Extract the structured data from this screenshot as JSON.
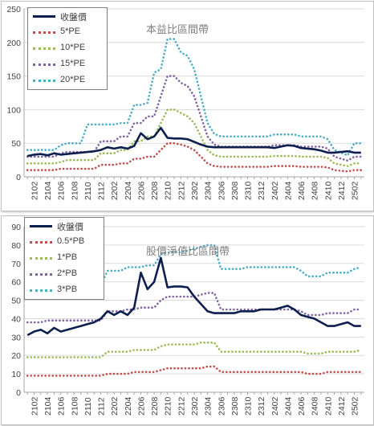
{
  "chart_data": [
    {
      "type": "line",
      "title": "本益比區間帶",
      "ylim": [
        0,
        250
      ],
      "yticks": [
        "0",
        "50",
        "100",
        "150",
        "200",
        "250"
      ],
      "xtick_labels": [
        "2102",
        "2104",
        "2106",
        "2108",
        "2110",
        "2112",
        "2202",
        "2204",
        "2206",
        "2208",
        "2210",
        "2212",
        "2302",
        "2304",
        "2306",
        "2308",
        "2310",
        "2312",
        "2402",
        "2404",
        "2406",
        "2408",
        "2410",
        "2412",
        "2502"
      ],
      "x": [
        "2101",
        "2102",
        "2103",
        "2104",
        "2105",
        "2106",
        "2107",
        "2108",
        "2109",
        "2110",
        "2111",
        "2112",
        "2201",
        "2202",
        "2203",
        "2204",
        "2205",
        "2206",
        "2207",
        "2208",
        "2209",
        "2210",
        "2211",
        "2212",
        "2301",
        "2302",
        "2303",
        "2304",
        "2305",
        "2306",
        "2307",
        "2308",
        "2309",
        "2310",
        "2311",
        "2312",
        "2401",
        "2402",
        "2403",
        "2404",
        "2405",
        "2406",
        "2407",
        "2408",
        "2409",
        "2410",
        "2411",
        "2412",
        "2501",
        "2502",
        "2503"
      ],
      "series": [
        {
          "name": "收盤價",
          "color": "#0d1f4f",
          "style": "solid",
          "values": [
            31,
            33,
            34,
            32,
            35,
            33,
            34,
            35,
            36,
            37,
            38,
            40,
            44,
            42,
            44,
            42,
            46,
            65,
            56,
            60,
            73,
            58,
            57,
            57,
            56,
            52,
            48,
            45,
            44,
            44,
            44,
            44,
            44,
            44,
            44,
            44,
            44,
            43,
            45,
            47,
            46,
            43,
            42,
            41,
            39,
            36,
            36,
            37,
            38,
            36,
            36
          ]
        },
        {
          "name": "5*PE",
          "color": "#c0504d",
          "style": "dotted",
          "values": [
            10,
            10,
            10,
            10,
            10,
            12,
            12,
            12,
            12,
            12,
            12,
            18,
            18,
            18,
            20,
            20,
            27,
            27,
            30,
            30,
            40,
            50,
            50,
            48,
            45,
            40,
            30,
            20,
            16,
            15,
            15,
            15,
            15,
            15,
            15,
            15,
            15,
            16,
            16,
            16,
            16,
            15,
            15,
            15,
            15,
            14,
            10,
            9,
            8,
            10,
            10
          ]
        },
        {
          "name": "10*PE",
          "color": "#9bbb59",
          "style": "dotted",
          "values": [
            20,
            20,
            20,
            20,
            20,
            22,
            25,
            25,
            25,
            25,
            25,
            35,
            35,
            35,
            40,
            40,
            53,
            53,
            60,
            60,
            80,
            100,
            100,
            95,
            90,
            80,
            60,
            40,
            32,
            30,
            30,
            30,
            30,
            30,
            30,
            30,
            30,
            31,
            31,
            31,
            31,
            30,
            30,
            30,
            30,
            28,
            20,
            18,
            16,
            20,
            20
          ]
        },
        {
          "name": "15*PE",
          "color": "#8064a2",
          "style": "dotted",
          "values": [
            30,
            30,
            30,
            30,
            30,
            35,
            37,
            37,
            37,
            37,
            37,
            53,
            53,
            53,
            60,
            60,
            80,
            80,
            90,
            90,
            120,
            150,
            150,
            140,
            135,
            120,
            90,
            60,
            48,
            45,
            45,
            45,
            45,
            45,
            45,
            45,
            45,
            47,
            47,
            47,
            47,
            45,
            45,
            45,
            45,
            42,
            30,
            27,
            24,
            30,
            30
          ]
        },
        {
          "name": "20*PE",
          "color": "#4bacc6",
          "style": "dotted",
          "values": [
            40,
            40,
            40,
            40,
            40,
            47,
            50,
            50,
            50,
            78,
            78,
            78,
            78,
            78,
            80,
            80,
            107,
            107,
            110,
            155,
            160,
            205,
            205,
            185,
            180,
            160,
            120,
            80,
            64,
            60,
            60,
            60,
            60,
            60,
            60,
            60,
            60,
            63,
            63,
            63,
            63,
            60,
            60,
            60,
            60,
            56,
            40,
            36,
            32,
            50,
            50
          ]
        }
      ]
    },
    {
      "type": "line",
      "title": "股價淨值比區間帶",
      "ylim": [
        0,
        90
      ],
      "yticks": [
        "0",
        "10",
        "20",
        "30",
        "40",
        "50",
        "60",
        "70",
        "80",
        "90"
      ],
      "xtick_labels": [
        "2102",
        "2104",
        "2106",
        "2108",
        "2110",
        "2112",
        "2202",
        "2204",
        "2206",
        "2208",
        "2210",
        "2212",
        "2302",
        "2304",
        "2306",
        "2308",
        "2310",
        "2312",
        "2402",
        "2404",
        "2406",
        "2408",
        "2410",
        "2412",
        "2502"
      ],
      "x": [
        "2101",
        "2102",
        "2103",
        "2104",
        "2105",
        "2106",
        "2107",
        "2108",
        "2109",
        "2110",
        "2111",
        "2112",
        "2201",
        "2202",
        "2203",
        "2204",
        "2205",
        "2206",
        "2207",
        "2208",
        "2209",
        "2210",
        "2211",
        "2212",
        "2301",
        "2302",
        "2303",
        "2304",
        "2305",
        "2306",
        "2307",
        "2308",
        "2309",
        "2310",
        "2311",
        "2312",
        "2401",
        "2402",
        "2403",
        "2404",
        "2405",
        "2406",
        "2407",
        "2408",
        "2409",
        "2410",
        "2411",
        "2412",
        "2501",
        "2502",
        "2503"
      ],
      "series": [
        {
          "name": "收盤價",
          "color": "#0d1f4f",
          "style": "solid",
          "values": [
            31,
            33,
            34,
            32,
            35,
            33,
            34,
            35,
            36,
            37,
            38,
            40,
            44,
            42,
            44,
            42,
            46,
            65,
            56,
            60,
            73,
            57,
            57.5,
            57.5,
            57,
            52,
            48,
            44,
            43,
            43,
            43,
            43,
            44,
            44,
            44,
            45,
            45,
            45,
            46,
            47,
            45,
            42,
            41,
            40,
            38,
            36,
            36,
            37,
            38,
            36,
            36
          ]
        },
        {
          "name": "0.5*PB",
          "color": "#c0504d",
          "style": "dotted",
          "values": [
            9,
            9,
            9,
            9,
            9,
            9,
            9,
            9,
            9,
            9,
            9,
            9,
            10,
            10,
            10,
            10,
            11,
            11,
            11,
            11,
            12,
            13,
            13,
            13,
            13,
            13,
            13,
            14,
            14,
            11,
            11,
            11,
            11,
            11,
            11,
            11,
            11,
            11,
            11,
            11,
            11,
            11,
            10,
            10,
            10,
            11,
            11,
            11,
            11,
            11,
            11
          ]
        },
        {
          "name": "1*PB",
          "color": "#9bbb59",
          "style": "dotted",
          "values": [
            19,
            19,
            19,
            19,
            19,
            19,
            19,
            19,
            19,
            19,
            19,
            19,
            22,
            22,
            22,
            22,
            23,
            23,
            23,
            23,
            25,
            26,
            26,
            26,
            26,
            26,
            27,
            27,
            27,
            22,
            22,
            22,
            22,
            22,
            22,
            22,
            22,
            22,
            22,
            22,
            22,
            22,
            21,
            21,
            21,
            22,
            22,
            22,
            22,
            22,
            23
          ]
        },
        {
          "name": "2*PB",
          "color": "#8064a2",
          "style": "dotted",
          "values": [
            38,
            38,
            38,
            39,
            39,
            39,
            39,
            39,
            39,
            39,
            39,
            39,
            44,
            44,
            44,
            45,
            45,
            46,
            46,
            46,
            50,
            52,
            52,
            52,
            52,
            52,
            53,
            54,
            54,
            45,
            45,
            45,
            45,
            45,
            45,
            45,
            45,
            45,
            45,
            45,
            45,
            44,
            42,
            42,
            42,
            43,
            43,
            43,
            43,
            45,
            45
          ]
        },
        {
          "name": "3*PB",
          "color": "#4bacc6",
          "style": "dotted",
          "values": [
            56,
            56,
            56,
            57,
            57,
            57,
            57,
            58,
            58,
            58,
            58,
            58,
            66,
            66,
            66,
            68,
            68,
            68,
            69,
            69,
            75,
            76,
            76,
            76,
            77,
            78,
            79,
            80,
            80,
            67,
            67,
            67,
            67,
            68,
            68,
            68,
            68,
            68,
            68,
            68,
            68,
            66,
            63,
            63,
            63,
            65,
            65,
            65,
            65,
            67,
            68
          ]
        }
      ]
    }
  ]
}
